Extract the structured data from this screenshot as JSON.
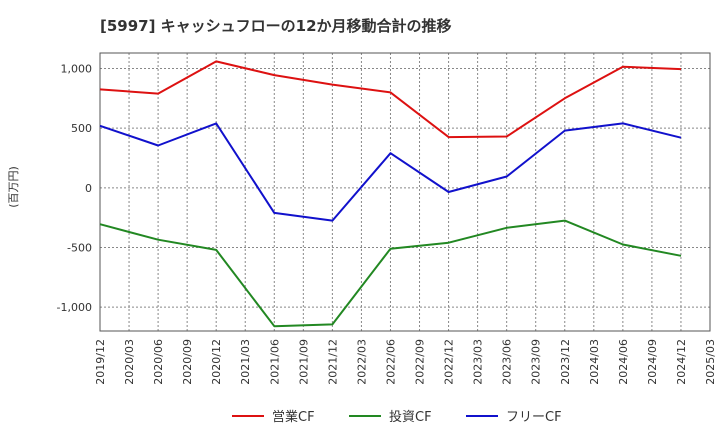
{
  "chart_data": {
    "type": "line",
    "title": "[5997]  キャッシュフローの12か月移動合計の推移",
    "ylabel": "(百万円)",
    "xlabel": "",
    "ylim": [
      -1200,
      1130
    ],
    "yticks": [
      1000,
      500,
      0,
      -500,
      -1000
    ],
    "ytick_labels": [
      "1,000",
      "500",
      "0",
      "-500",
      "-1,000"
    ],
    "x_tick_labels": [
      "2019/12",
      "2020/03",
      "2020/06",
      "2020/09",
      "2020/12",
      "2021/03",
      "2021/06",
      "2021/09",
      "2021/12",
      "2022/03",
      "2022/06",
      "2022/09",
      "2022/12",
      "2023/03",
      "2023/06",
      "2023/09",
      "2023/12",
      "2024/03",
      "2024/06",
      "2024/09",
      "2024/12",
      "2025/03"
    ],
    "grid": true,
    "legend_position": "bottom",
    "series": [
      {
        "name": "営業CF",
        "color": "#dd1111",
        "points": [
          [
            0,
            825
          ],
          [
            2,
            790
          ],
          [
            4,
            1060
          ],
          [
            6,
            945
          ],
          [
            8,
            865
          ],
          [
            10,
            800
          ],
          [
            12,
            425
          ],
          [
            14,
            430
          ],
          [
            16,
            750
          ],
          [
            18,
            1015
          ],
          [
            20,
            995
          ]
        ]
      },
      {
        "name": "投資CF",
        "color": "#228822",
        "points": [
          [
            0,
            -305
          ],
          [
            2,
            -435
          ],
          [
            4,
            -520
          ],
          [
            6,
            -1160
          ],
          [
            8,
            -1145
          ],
          [
            10,
            -510
          ],
          [
            12,
            -460
          ],
          [
            14,
            -335
          ],
          [
            16,
            -275
          ],
          [
            18,
            -475
          ],
          [
            20,
            -570
          ]
        ]
      },
      {
        "name": "フリーCF",
        "color": "#1111cc",
        "points": [
          [
            0,
            520
          ],
          [
            2,
            355
          ],
          [
            4,
            540
          ],
          [
            6,
            -210
          ],
          [
            8,
            -275
          ],
          [
            10,
            290
          ],
          [
            12,
            -35
          ],
          [
            14,
            95
          ],
          [
            16,
            480
          ],
          [
            18,
            540
          ],
          [
            20,
            420
          ]
        ]
      }
    ]
  }
}
